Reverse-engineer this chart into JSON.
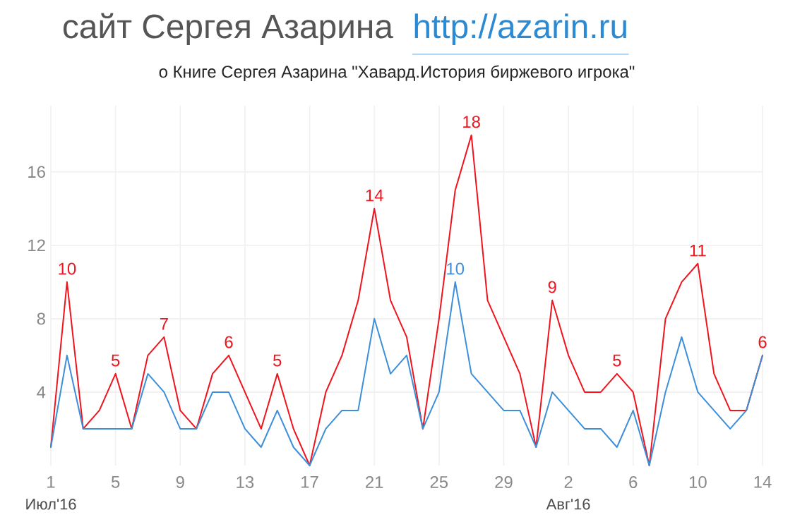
{
  "chart_data": {
    "type": "line",
    "title": "сайт Сергея Азарина",
    "subtitle": "о Книге Сергея Азарина \"Хавард.История биржевого игрока\"",
    "annotations": [
      "http://azarin.ru",
      "Июл'16",
      "Авг'16"
    ],
    "x": [
      "2016-07-01",
      "2016-07-02",
      "2016-07-03",
      "2016-07-04",
      "2016-07-05",
      "2016-07-06",
      "2016-07-07",
      "2016-07-08",
      "2016-07-09",
      "2016-07-10",
      "2016-07-11",
      "2016-07-12",
      "2016-07-13",
      "2016-07-14",
      "2016-07-15",
      "2016-07-16",
      "2016-07-17",
      "2016-07-18",
      "2016-07-19",
      "2016-07-20",
      "2016-07-21",
      "2016-07-22",
      "2016-07-23",
      "2016-07-24",
      "2016-07-25",
      "2016-07-26",
      "2016-07-27",
      "2016-07-28",
      "2016-07-29",
      "2016-07-30",
      "2016-07-31",
      "2016-08-01",
      "2016-08-02",
      "2016-08-03",
      "2016-08-04",
      "2016-08-05",
      "2016-08-06",
      "2016-08-07",
      "2016-08-08",
      "2016-08-09",
      "2016-08-10",
      "2016-08-11",
      "2016-08-12",
      "2016-08-13",
      "2016-08-14"
    ],
    "series": [
      {
        "color": "#f0141e",
        "values": [
          1,
          10,
          2,
          3,
          5,
          2,
          6,
          7,
          3,
          2,
          5,
          6,
          4,
          2,
          5,
          2,
          0,
          4,
          6,
          9,
          14,
          9,
          7,
          2,
          8,
          15,
          18,
          9,
          7,
          5,
          1,
          9,
          6,
          4,
          4,
          5,
          4,
          0,
          8,
          10,
          11,
          5,
          3,
          3,
          6
        ],
        "value_labels": [
          null,
          "10",
          null,
          null,
          "5",
          null,
          null,
          "7",
          null,
          null,
          null,
          "6",
          null,
          null,
          "5",
          null,
          null,
          null,
          null,
          null,
          "14",
          null,
          null,
          null,
          null,
          null,
          "18",
          null,
          null,
          null,
          null,
          "9",
          null,
          null,
          null,
          "5",
          null,
          null,
          null,
          null,
          "11",
          null,
          null,
          null,
          "6"
        ]
      },
      {
        "color": "#3c8fd8",
        "values": [
          1,
          6,
          2,
          2,
          2,
          2,
          5,
          4,
          2,
          2,
          4,
          4,
          2,
          1,
          3,
          1,
          0,
          2,
          3,
          3,
          8,
          5,
          6,
          2,
          4,
          10,
          5,
          4,
          3,
          3,
          1,
          4,
          3,
          2,
          2,
          1,
          3,
          0,
          4,
          7,
          4,
          3,
          2,
          3,
          6
        ],
        "value_labels": [
          null,
          null,
          null,
          null,
          null,
          null,
          null,
          null,
          null,
          null,
          null,
          null,
          null,
          null,
          null,
          null,
          null,
          null,
          null,
          null,
          null,
          null,
          null,
          null,
          null,
          "10",
          null,
          null,
          null,
          null,
          null,
          null,
          null,
          null,
          null,
          null,
          null,
          null,
          null,
          null,
          null,
          null,
          null,
          null,
          null
        ]
      }
    ],
    "xlim": [
      "2016-07-01",
      "2016-08-14"
    ],
    "xticks": [
      {
        "value": "2016-07-01",
        "label": "1"
      },
      {
        "value": "2016-07-05",
        "label": "5"
      },
      {
        "value": "2016-07-09",
        "label": "9"
      },
      {
        "value": "2016-07-13",
        "label": "13"
      },
      {
        "value": "2016-07-17",
        "label": "17"
      },
      {
        "value": "2016-07-21",
        "label": "21"
      },
      {
        "value": "2016-07-25",
        "label": "25"
      },
      {
        "value": "2016-07-29",
        "label": "29"
      },
      {
        "value": "2016-08-02",
        "label": "2"
      },
      {
        "value": "2016-08-06",
        "label": "6"
      },
      {
        "value": "2016-08-10",
        "label": "10"
      },
      {
        "value": "2016-08-14",
        "label": "14"
      }
    ],
    "ylim": [
      0,
      19.6
    ],
    "yticks": [
      4,
      8,
      12,
      16
    ],
    "grid": true
  }
}
